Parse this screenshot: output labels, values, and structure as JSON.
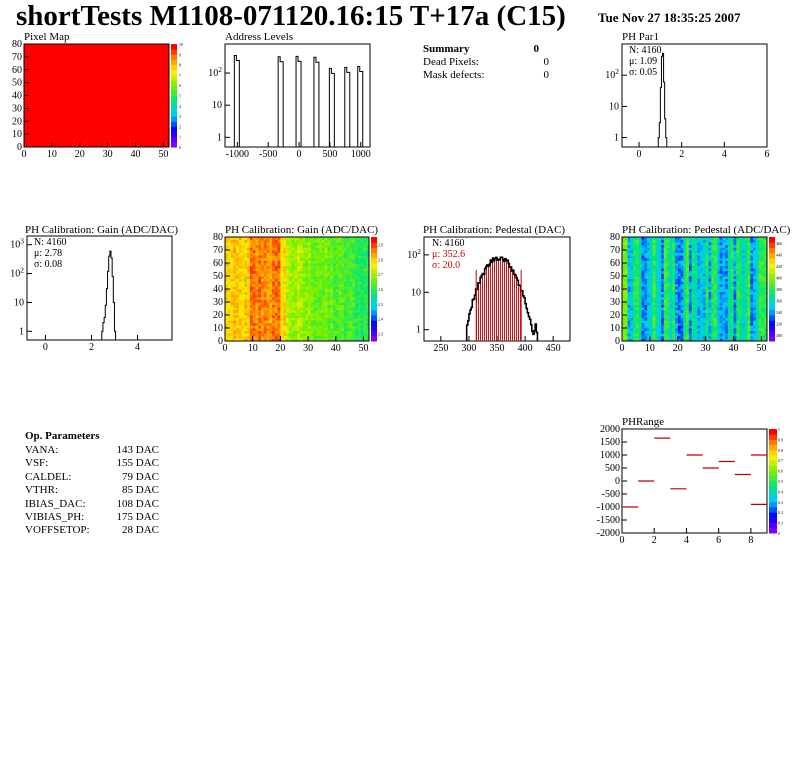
{
  "header": {
    "title": "shortTests M1108-071120.16:15 T+17a (C15)",
    "date": "Tue Nov 27 18:35:25 2007"
  },
  "summary": {
    "title": "Summary",
    "value": "0",
    "rows": [
      {
        "label": "Dead Pixels:",
        "value": "0"
      },
      {
        "label": "Mask defects:",
        "value": "0"
      }
    ]
  },
  "op_params": {
    "title": "Op. Parameters",
    "rows": [
      {
        "label": "VANA:",
        "value": "143 DAC"
      },
      {
        "label": "VSF:",
        "value": "155 DAC"
      },
      {
        "label": "CALDEL:",
        "value": "79 DAC"
      },
      {
        "label": "VTHR:",
        "value": "85 DAC"
      },
      {
        "label": "IBIAS_DAC:",
        "value": "108 DAC"
      },
      {
        "label": "VIBIAS_PH:",
        "value": "175 DAC"
      },
      {
        "label": "VOFFSETOP:",
        "value": "28 DAC"
      }
    ]
  },
  "colors": {
    "pixel_map": "#ff0000",
    "pedestal_fill": "#c01818",
    "stat_red": "#d00000"
  },
  "chart_data": [
    {
      "id": "pixelmap",
      "type": "heatmap",
      "title": "Pixel Map",
      "xlim": [
        0,
        52
      ],
      "ylim": [
        0,
        80
      ],
      "xticks": [
        "0",
        "10",
        "20",
        "30",
        "40",
        "50"
      ],
      "yticks": [
        "0",
        "10",
        "20",
        "30",
        "40",
        "50",
        "60",
        "70",
        "80"
      ],
      "value": "uniform 10 (all pixels alive)",
      "zticks": [
        "0",
        "1",
        "2",
        "3",
        "4",
        "5",
        "6",
        "7",
        "8",
        "9",
        "10"
      ]
    },
    {
      "id": "addr",
      "type": "bar",
      "title": "Address Levels",
      "log_y": true,
      "xlim": [
        -1200,
        1150
      ],
      "xticks": [
        "-1000",
        "-500",
        "0",
        "500",
        "1000"
      ],
      "yticks": [
        "1",
        "10",
        "10^2"
      ],
      "peaks": [
        -1000,
        -290,
        0,
        290,
        540,
        790,
        1000
      ],
      "peak_height": 400
    },
    {
      "id": "phpar1",
      "type": "bar",
      "title": "PH Par1",
      "log_y": true,
      "xlim": [
        -0.8,
        6
      ],
      "xticks": [
        "0",
        "2",
        "4",
        "6"
      ],
      "yticks": [
        "1",
        "10",
        "10^2"
      ],
      "stats": {
        "n": "N: 4160",
        "mean": "μ: 1.09",
        "sigma": "σ: 0.05"
      }
    },
    {
      "id": "gain1d",
      "type": "bar",
      "title": "PH Calibration: Gain (ADC/DAC)",
      "log_y": true,
      "xlim": [
        -0.8,
        5.5
      ],
      "xticks": [
        "0",
        "2",
        "4"
      ],
      "yticks": [
        "1",
        "10",
        "10^2",
        "10^3"
      ],
      "stats": {
        "n": "N: 4160",
        "mean": "μ: 2.78",
        "sigma": "σ: 0.08"
      }
    },
    {
      "id": "gainmap",
      "type": "heatmap",
      "title": "PH Calibration: Gain (ADC/DAC)",
      "xlim": [
        0,
        52
      ],
      "ylim": [
        0,
        80
      ],
      "xticks": [
        "0",
        "10",
        "20",
        "30",
        "40",
        "50"
      ],
      "yticks": [
        "0",
        "10",
        "20",
        "30",
        "40",
        "50",
        "60",
        "70",
        "80"
      ],
      "zticks": [
        "2.3",
        "2.4",
        "2.5",
        "2.6",
        "2.7",
        "2.8",
        "2.9"
      ]
    },
    {
      "id": "ped1d",
      "type": "bar",
      "title": "PH Calibration: Pedestal (DAC)",
      "log_y": true,
      "xlim": [
        220,
        480
      ],
      "xticks": [
        "250",
        "300",
        "350",
        "400",
        "450"
      ],
      "yticks": [
        "1",
        "10",
        "10^2"
      ],
      "stats": {
        "n": "N: 4160",
        "mean": "μ: 352.6",
        "sigma": "σ: 20.0"
      },
      "markers": [
        313,
        393
      ]
    },
    {
      "id": "pedmap",
      "type": "heatmap",
      "title": "PH Calibration: Pedestal (ADC/DAC)",
      "xlim": [
        0,
        52
      ],
      "ylim": [
        0,
        80
      ],
      "xticks": [
        "0",
        "10",
        "20",
        "30",
        "40",
        "50"
      ],
      "yticks": [
        "0",
        "10",
        "20",
        "30",
        "40",
        "50",
        "60",
        "70",
        "80"
      ],
      "zticks": [
        "300",
        "320",
        "340",
        "360",
        "380",
        "400",
        "420",
        "440",
        "460"
      ]
    },
    {
      "id": "phrange",
      "type": "scatter",
      "title": "PHRange",
      "xlim": [
        0,
        9
      ],
      "ylim": [
        -2000,
        2000
      ],
      "xticks": [
        "0",
        "2",
        "4",
        "6",
        "8"
      ],
      "yticks": [
        "-2000",
        "-1500",
        "-1000",
        "-500",
        "0",
        "500",
        "1000",
        "1500",
        "2000"
      ],
      "segments": [
        {
          "x": 0,
          "y": -1000
        },
        {
          "x": 1,
          "y": 0
        },
        {
          "x": 2,
          "y": 1650
        },
        {
          "x": 3,
          "y": -300
        },
        {
          "x": 4,
          "y": 1000
        },
        {
          "x": 5,
          "y": 500
        },
        {
          "x": 6,
          "y": 750
        },
        {
          "x": 7,
          "y": 250
        },
        {
          "x": 8,
          "y": 1000
        },
        {
          "x": 8,
          "y": -900
        }
      ],
      "zticks": [
        "0",
        "0.1",
        "0.2",
        "0.3",
        "0.4",
        "0.5",
        "0.6",
        "0.7",
        "0.8",
        "0.9",
        "1"
      ]
    }
  ]
}
